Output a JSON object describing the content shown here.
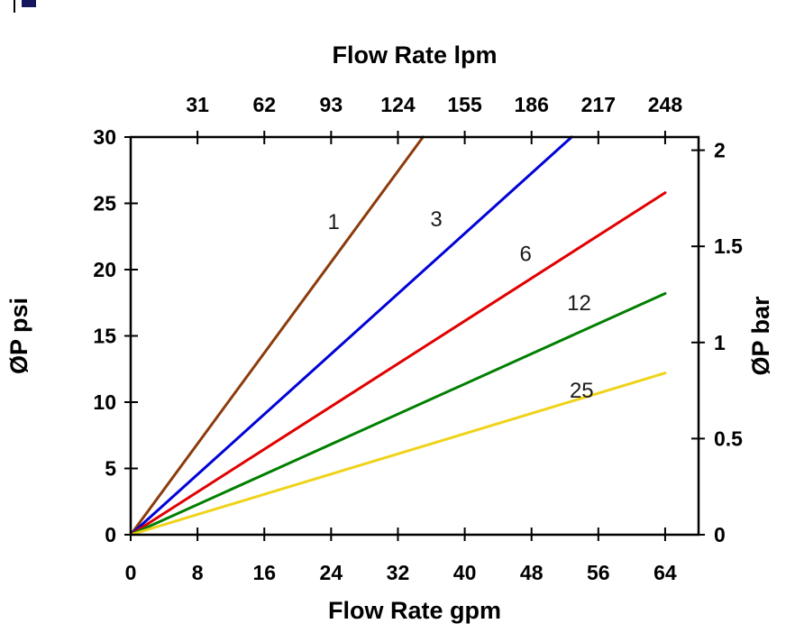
{
  "page": {
    "background": "#ffffff"
  },
  "chart_data": {
    "type": "line",
    "title_top": "Flow Rate lpm",
    "xlabel_bottom": "Flow Rate gpm",
    "ylabel_left": "ØP psi",
    "ylabel_right": "ØP bar",
    "grid": false,
    "legend": "labels drawn next to each line",
    "x_axis_bottom": {
      "unit": "gpm",
      "ticks": [
        0,
        8,
        16,
        24,
        32,
        40,
        48,
        56,
        64
      ],
      "range": [
        0,
        68
      ]
    },
    "x_axis_top": {
      "unit": "lpm",
      "ticks": [
        31,
        62,
        93,
        124,
        155,
        186,
        217,
        248
      ],
      "gpm_per_lpm": 0.2580645,
      "aligned_with_gpm_ticks": true
    },
    "y_axis_left": {
      "unit": "psi",
      "ticks": [
        0,
        5,
        10,
        15,
        20,
        25,
        30
      ],
      "range": [
        0,
        30
      ]
    },
    "y_axis_right": {
      "unit": "bar",
      "ticks": [
        0,
        0.5,
        1,
        1.5,
        2
      ],
      "psi_per_bar": 14.5038
    },
    "series": [
      {
        "name": "1",
        "color": "#8C3B0B",
        "points": [
          [
            0,
            0
          ],
          [
            35.0,
            30.0
          ]
        ],
        "label_at": [
          24.3,
          23.6
        ]
      },
      {
        "name": "3",
        "color": "#0000D8",
        "points": [
          [
            0,
            0
          ],
          [
            52.8,
            30.0
          ]
        ],
        "label_at": [
          36.6,
          23.8
        ]
      },
      {
        "name": "6",
        "color": "#E00000",
        "points": [
          [
            0,
            0
          ],
          [
            64.0,
            25.8
          ]
        ],
        "label_at": [
          47.3,
          21.2
        ]
      },
      {
        "name": "12",
        "color": "#007F00",
        "points": [
          [
            0,
            0
          ],
          [
            64.0,
            18.2
          ]
        ],
        "label_at": [
          53.7,
          17.5
        ]
      },
      {
        "name": "25",
        "color": "#EFD319",
        "points": [
          [
            0,
            0
          ],
          [
            64.0,
            12.2
          ]
        ],
        "label_at": [
          54.0,
          10.9
        ]
      }
    ]
  }
}
